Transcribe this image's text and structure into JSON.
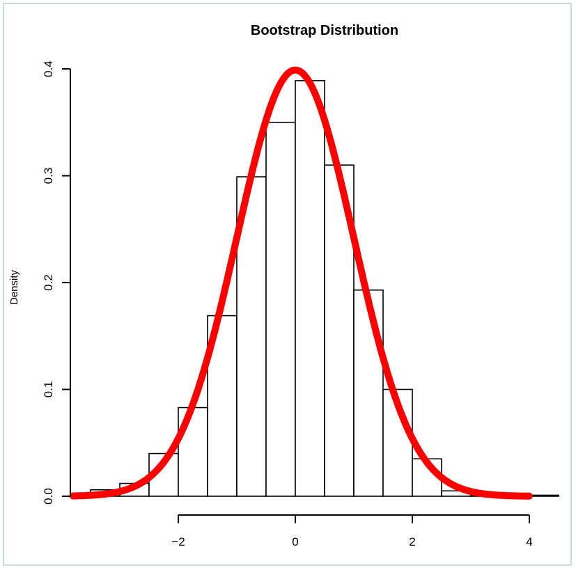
{
  "chart_data": {
    "type": "bar",
    "title": "Bootstrap Distribution",
    "xlabel": "",
    "ylabel": "Density",
    "xlim": [
      -4,
      4.5
    ],
    "ylim": [
      0,
      0.4
    ],
    "grid": false,
    "bin_edges": [
      -3.5,
      -3.0,
      -2.5,
      -2.0,
      -1.5,
      -1.0,
      -0.5,
      0.0,
      0.5,
      1.0,
      1.5,
      2.0,
      2.5,
      3.0,
      3.5,
      4.0,
      4.5
    ],
    "values": [
      0.006,
      0.012,
      0.04,
      0.083,
      0.169,
      0.299,
      0.35,
      0.389,
      0.31,
      0.193,
      0.1,
      0.035,
      0.005,
      0.001,
      0.001,
      0.001
    ],
    "x_ticks": [
      "-2",
      "0",
      "2",
      "4"
    ],
    "y_ticks": [
      "0.0",
      "0.1",
      "0.2",
      "0.3",
      "0.4"
    ],
    "curve": {
      "type": "line",
      "function": "normal density",
      "mean": 0,
      "sd": 1,
      "x_range": [
        -3.8,
        4.0
      ],
      "color": "#ff0000"
    },
    "bar_fill": "#ffffff",
    "bar_stroke": "#000000"
  }
}
